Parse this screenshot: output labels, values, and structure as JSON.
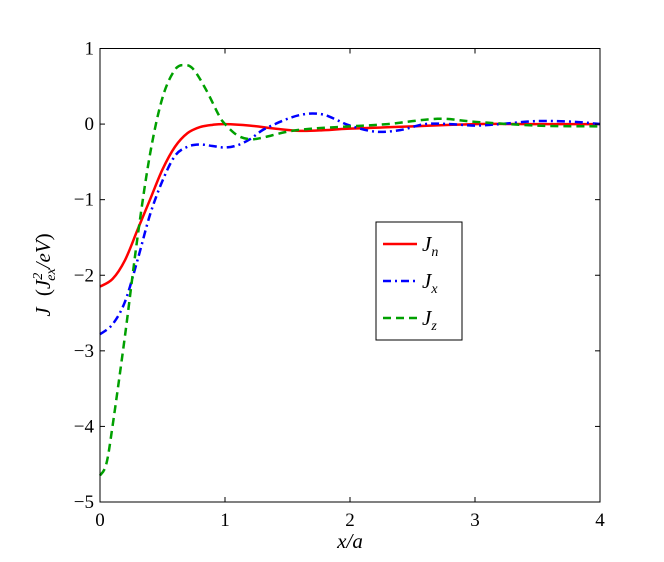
{
  "chart_data": {
    "type": "line",
    "title": "",
    "xlabel": "x/a",
    "ylabel": {
      "main": "J",
      "paren_open": "(",
      "J": "J",
      "sup": "2",
      "sub": "ex",
      "rest": "/eV",
      "paren_close": ")"
    },
    "xlim": [
      0,
      4
    ],
    "ylim": [
      -5,
      1
    ],
    "xticks": [
      0,
      1,
      2,
      3,
      4
    ],
    "xtick_labels": [
      "0",
      "1",
      "2",
      "3",
      "4"
    ],
    "yticks": [
      1,
      0,
      -1,
      -2,
      -3,
      -4,
      -5
    ],
    "ytick_labels": [
      "1",
      "0",
      "−1",
      "−2",
      "−3",
      "−4",
      "−5"
    ],
    "grid": false,
    "legend_position": "center-right",
    "series": [
      {
        "name": "J",
        "subscript": "n",
        "color": "#ff0000",
        "style": "solid",
        "x": [
          0,
          0.1,
          0.2,
          0.3,
          0.4,
          0.5,
          0.6,
          0.7,
          0.8,
          0.9,
          1.0,
          1.2,
          1.4,
          1.6,
          1.8,
          2.0,
          2.5,
          3.0,
          3.5,
          4.0
        ],
        "y": [
          -2.15,
          -2.05,
          -1.8,
          -1.4,
          -1.0,
          -0.6,
          -0.3,
          -0.12,
          -0.04,
          -0.01,
          0,
          -0.02,
          -0.06,
          -0.09,
          -0.08,
          -0.06,
          -0.03,
          0,
          0,
          0
        ]
      },
      {
        "name": "J",
        "subscript": "x",
        "color": "#0000ff",
        "style": "dashdot",
        "x": [
          0,
          0.1,
          0.2,
          0.3,
          0.4,
          0.5,
          0.6,
          0.7,
          0.8,
          0.9,
          1.0,
          1.1,
          1.2,
          1.3,
          1.4,
          1.5,
          1.6,
          1.7,
          1.8,
          1.9,
          2.0,
          2.2,
          2.4,
          2.6,
          2.8,
          3.0,
          3.2,
          3.5,
          3.8,
          4.0
        ],
        "y": [
          -2.78,
          -2.65,
          -2.35,
          -1.8,
          -1.2,
          -0.75,
          -0.42,
          -0.3,
          -0.27,
          -0.29,
          -0.31,
          -0.28,
          -0.2,
          -0.08,
          0.0,
          0.07,
          0.12,
          0.14,
          0.12,
          0.05,
          -0.02,
          -0.1,
          -0.08,
          0,
          0,
          -0.02,
          0,
          0.04,
          0.03,
          0
        ]
      },
      {
        "name": "J",
        "subscript": "z",
        "color": "#00a000",
        "style": "dashed",
        "x": [
          0,
          0.05,
          0.1,
          0.2,
          0.3,
          0.4,
          0.5,
          0.6,
          0.68,
          0.75,
          0.85,
          0.95,
          1.0,
          1.1,
          1.2,
          1.3,
          1.5,
          1.7,
          2.0,
          2.3,
          2.7,
          3.0,
          3.5,
          4.0
        ],
        "y": [
          -4.65,
          -4.5,
          -4.0,
          -2.8,
          -1.5,
          -0.4,
          0.35,
          0.72,
          0.78,
          0.72,
          0.45,
          0.12,
          0.0,
          -0.15,
          -0.2,
          -0.18,
          -0.1,
          -0.06,
          -0.03,
          0.0,
          0.07,
          0.03,
          -0.02,
          -0.03
        ]
      }
    ]
  }
}
